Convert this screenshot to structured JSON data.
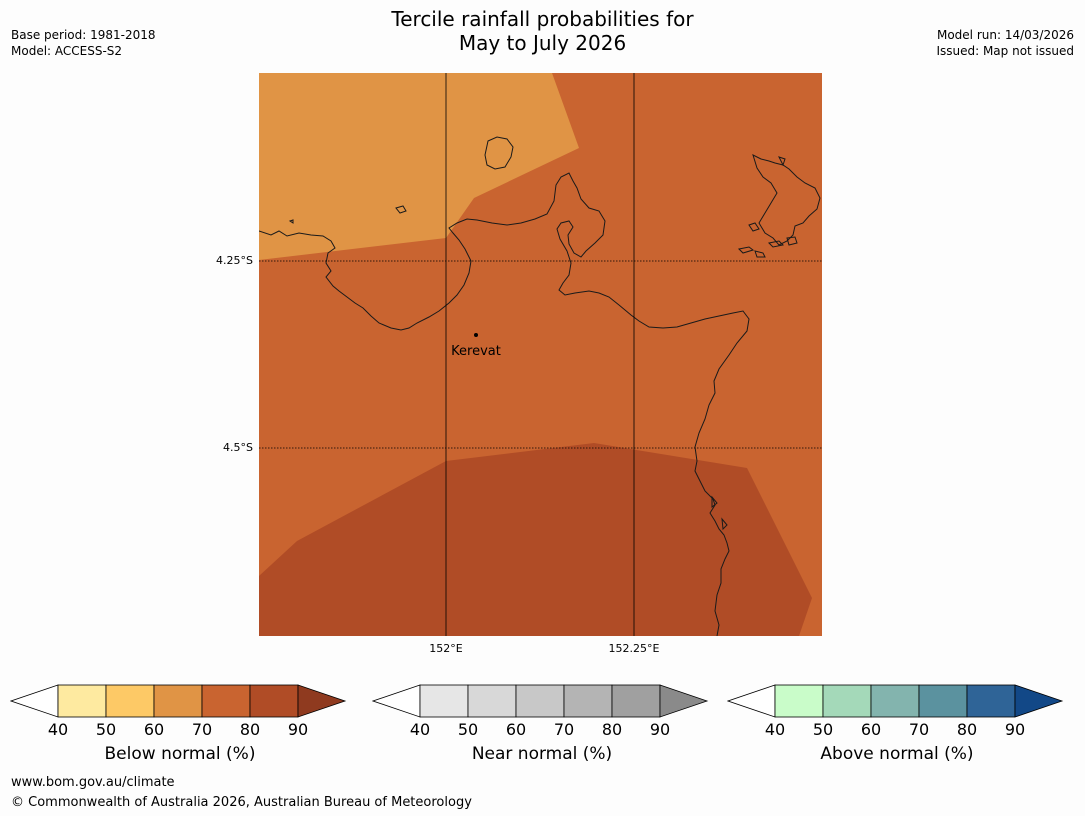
{
  "header": {
    "title_line1": "Tercile rainfall probabilities for",
    "title_line2": "May to July 2026",
    "base_period": "Base period: 1981-2018",
    "model": "Model: ACCESS-S2",
    "model_run": "Model run: 14/03/2026",
    "issued": "Issued: Map not issued"
  },
  "map": {
    "place_label": "Kerevat",
    "lat_labels": [
      "4.25°S",
      "4.5°S"
    ],
    "lon_labels": [
      "152°E",
      "152.25°E"
    ],
    "region_colors": {
      "band_50_60": "#e09445",
      "band_60_70": "#c96430",
      "band_70_80": "#b04c26",
      "coast": "#1a1a1a",
      "grid": "#000000"
    }
  },
  "legends": [
    {
      "label": "Below normal (%)",
      "ticks": [
        "40",
        "50",
        "60",
        "70",
        "80",
        "90"
      ],
      "colors": [
        "#ffffff",
        "#feeaa0",
        "#fdc966",
        "#e09445",
        "#c96430",
        "#b04c26",
        "#8f3a1f"
      ]
    },
    {
      "label": "Near normal (%)",
      "ticks": [
        "40",
        "50",
        "60",
        "70",
        "80",
        "90"
      ],
      "colors": [
        "#ffffff",
        "#e6e6e6",
        "#d8d8d8",
        "#c8c8c8",
        "#b4b4b4",
        "#a0a0a0",
        "#8a8a8a"
      ]
    },
    {
      "label": "Above normal (%)",
      "ticks": [
        "40",
        "50",
        "60",
        "70",
        "80",
        "90"
      ],
      "colors": [
        "#ffffff",
        "#c9fcc9",
        "#a4d9b9",
        "#83b4ae",
        "#5b929f",
        "#2f6497",
        "#124887"
      ]
    }
  ],
  "footer": {
    "url": "www.bom.gov.au/climate",
    "copyright": "© Commonwealth of Australia 2026, Australian Bureau of Meteorology"
  }
}
